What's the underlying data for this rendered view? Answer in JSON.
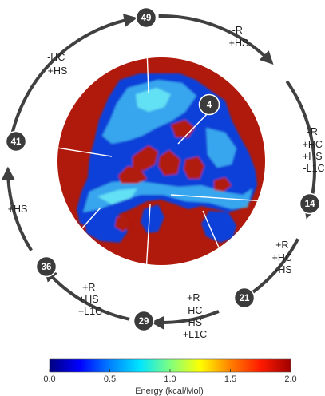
{
  "states": [
    {
      "id": "49",
      "label": "49"
    },
    {
      "id": "4",
      "label": "4"
    },
    {
      "id": "14",
      "label": "14"
    },
    {
      "id": "21",
      "label": "21"
    },
    {
      "id": "29",
      "label": "29"
    },
    {
      "id": "36",
      "label": "36"
    },
    {
      "id": "41",
      "label": "41"
    }
  ],
  "transitions": [
    {
      "from": "49",
      "to": "4",
      "lines": [
        "-R",
        "+HS"
      ]
    },
    {
      "from": "4",
      "to": "14",
      "lines": [
        "-R",
        "+HC",
        "+HS",
        "-L1C"
      ]
    },
    {
      "from": "14",
      "to": "21",
      "lines": [
        "+R",
        "+HC",
        "-HS"
      ]
    },
    {
      "from": "21",
      "to": "29",
      "lines": [
        "+R",
        "-HC",
        "-HS",
        "+L1C"
      ]
    },
    {
      "from": "29",
      "to": "36",
      "lines": [
        "+R",
        "+HS",
        "+L1C"
      ]
    },
    {
      "from": "36",
      "to": "41",
      "lines": [
        "+HS"
      ]
    },
    {
      "from": "41",
      "to": "49",
      "lines": [
        "-HC",
        "+HS"
      ]
    }
  ],
  "colorbar": {
    "title": "Energy (kcal/Mol)",
    "ticks": [
      "0.0",
      "0.5",
      "1.0",
      "1.5",
      "2.0"
    ],
    "min": 0.0,
    "max": 2.0,
    "colors": [
      "#00007f",
      "#0000ff",
      "#0080ff",
      "#00e5ff",
      "#7fff80",
      "#ffff00",
      "#ff8000",
      "#ff1a00",
      "#a00000"
    ]
  },
  "map": {
    "background_color": "#b01a0c",
    "low_color": "#0a3fd8",
    "mid_color": "#3fb8f2",
    "cyan_color": "#6ff0f5"
  }
}
